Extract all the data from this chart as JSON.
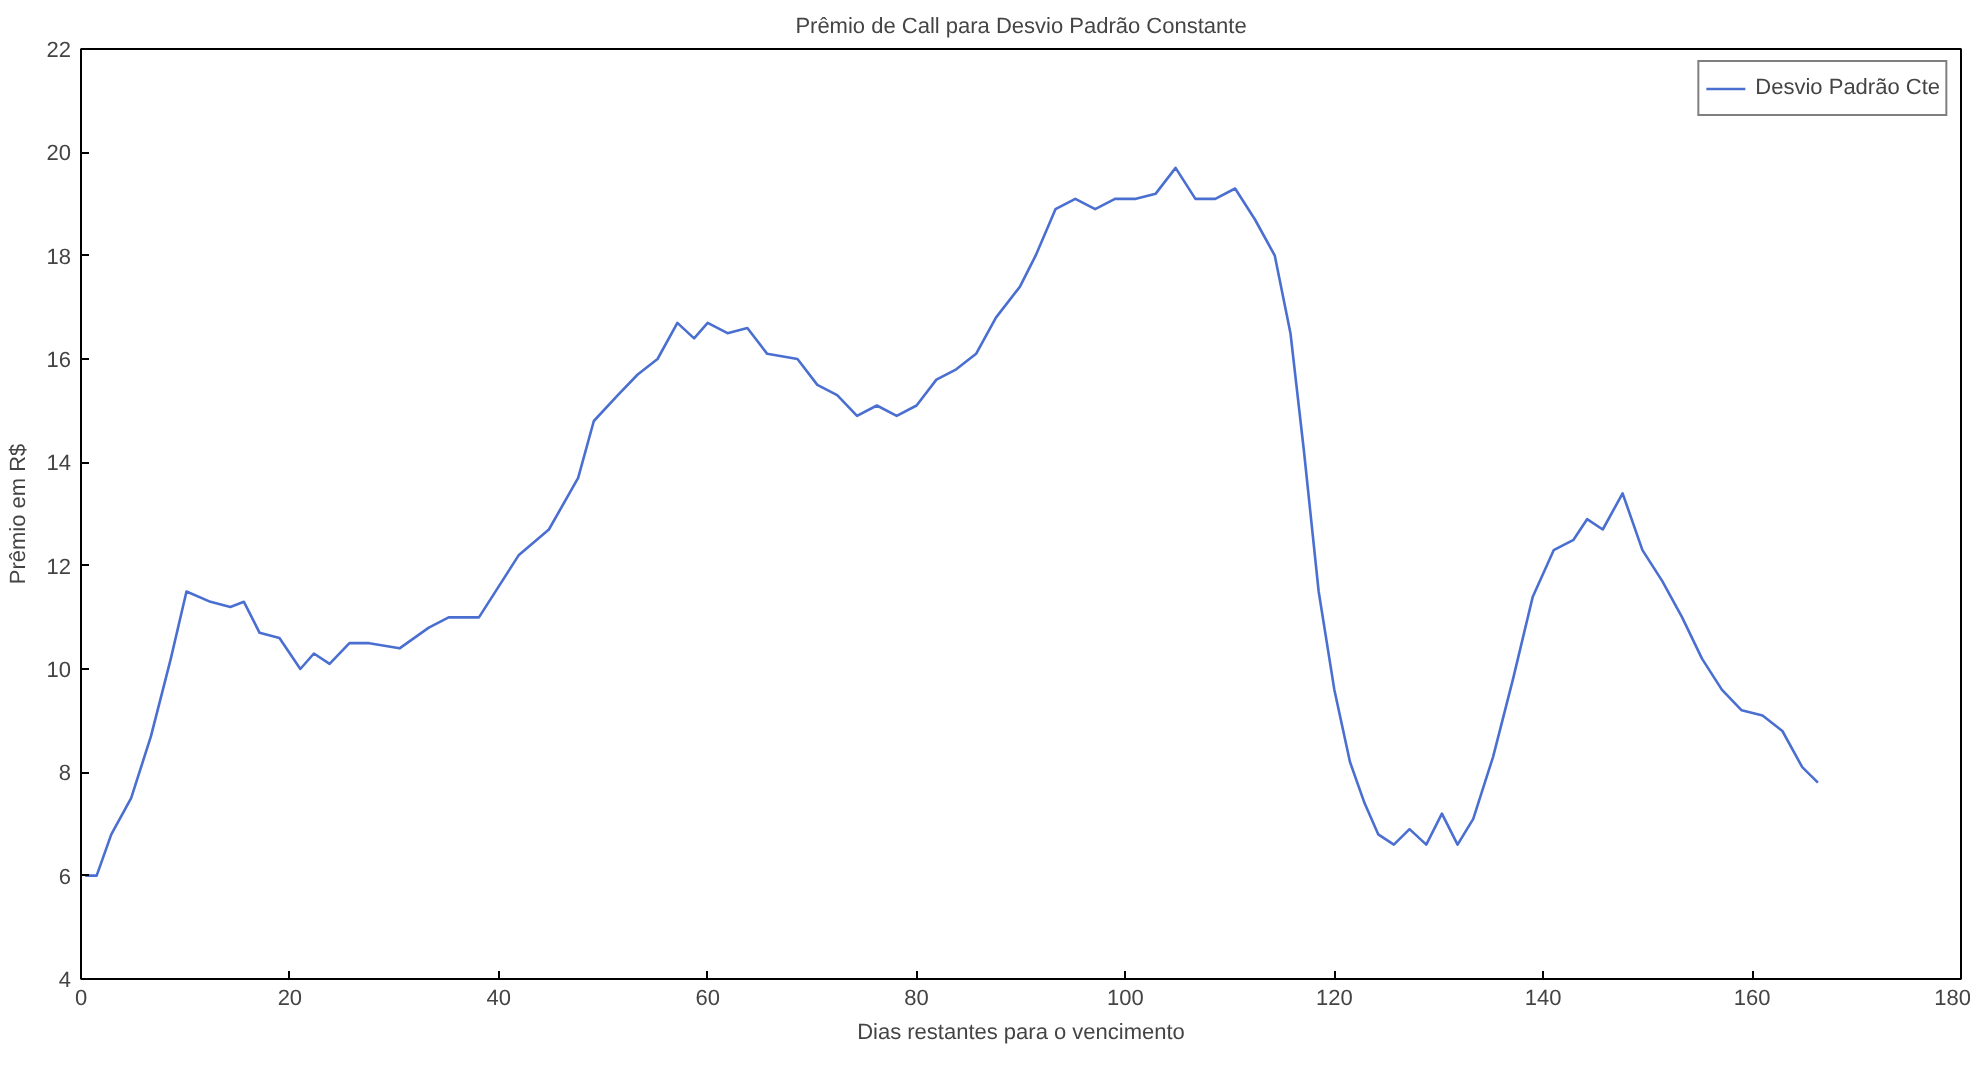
{
  "chart_data": {
    "type": "line",
    "title": "Prêmio de Call para Desvio Padrão Constante",
    "xlabel": "Dias restantes para o vencimento",
    "ylabel": "Prêmio em R$",
    "xlim": [
      0,
      180
    ],
    "xticks": [
      0,
      20,
      40,
      60,
      80,
      100,
      120,
      140,
      160,
      180
    ],
    "ylim": [
      4,
      22
    ],
    "yticks": [
      4,
      6,
      8,
      10,
      12,
      14,
      16,
      18,
      20,
      22
    ],
    "grid": false,
    "legend": "top right",
    "marker": "none",
    "line_style": "solid",
    "series": [
      {
        "name": "Desvio Padrão Cte",
        "color": "#4a6fd0",
        "x": [
          0.4,
          1.5,
          2.9,
          4.8,
          6.7,
          8.6,
          10.1,
          12.4,
          14.3,
          15.6,
          17.1,
          19,
          21,
          22.3,
          23.8,
          25.7,
          27.6,
          30.5,
          33.3,
          35.2,
          38.1,
          40,
          41.9,
          44.8,
          47.6,
          49.1,
          51.4,
          53.3,
          55.2,
          57.1,
          58.7,
          60,
          61.9,
          63.8,
          65.7,
          68.6,
          70.5,
          72.4,
          74.3,
          76.2,
          78.1,
          80,
          81.9,
          83.8,
          85.7,
          87.6,
          89.9,
          91.4,
          93.3,
          95.2,
          97.1,
          99,
          101,
          102.9,
          104.8,
          106.7,
          108.6,
          110.5,
          112.4,
          114.3,
          115.8,
          117.1,
          118.5,
          120,
          121.5,
          122.9,
          124.2,
          125.7,
          127.2,
          128.8,
          130.3,
          131.8,
          133.3,
          135.2,
          137.1,
          139,
          141,
          142.9,
          144.2,
          145.7,
          147.6,
          149.5,
          151.4,
          153.3,
          155.2,
          157.1,
          159,
          161,
          162.9,
          164.8,
          166.3
        ],
        "values": [
          6.0,
          6.0,
          6.8,
          7.5,
          8.7,
          10.2,
          11.5,
          11.3,
          11.2,
          11.3,
          10.7,
          10.6,
          10.0,
          10.3,
          10.1,
          10.5,
          10.5,
          10.4,
          10.8,
          11.0,
          11.0,
          11.6,
          12.2,
          12.7,
          13.7,
          14.8,
          15.3,
          15.7,
          16.0,
          16.7,
          16.4,
          16.7,
          16.5,
          16.6,
          16.1,
          16.0,
          15.5,
          15.3,
          14.9,
          15.1,
          14.9,
          15.1,
          15.6,
          15.8,
          16.1,
          16.8,
          17.4,
          18.0,
          18.9,
          19.1,
          18.9,
          19.1,
          19.1,
          19.2,
          19.7,
          19.1,
          19.1,
          19.3,
          18.7,
          18.0,
          16.5,
          14.2,
          11.5,
          9.6,
          8.2,
          7.4,
          6.8,
          6.6,
          6.9,
          6.6,
          7.2,
          6.6,
          7.1,
          8.3,
          9.8,
          11.4,
          12.3,
          12.5,
          12.9,
          12.7,
          13.4,
          12.3,
          11.7,
          11.0,
          10.2,
          9.6,
          9.2,
          9.1,
          8.8,
          8.1,
          7.8
        ]
      }
    ]
  }
}
